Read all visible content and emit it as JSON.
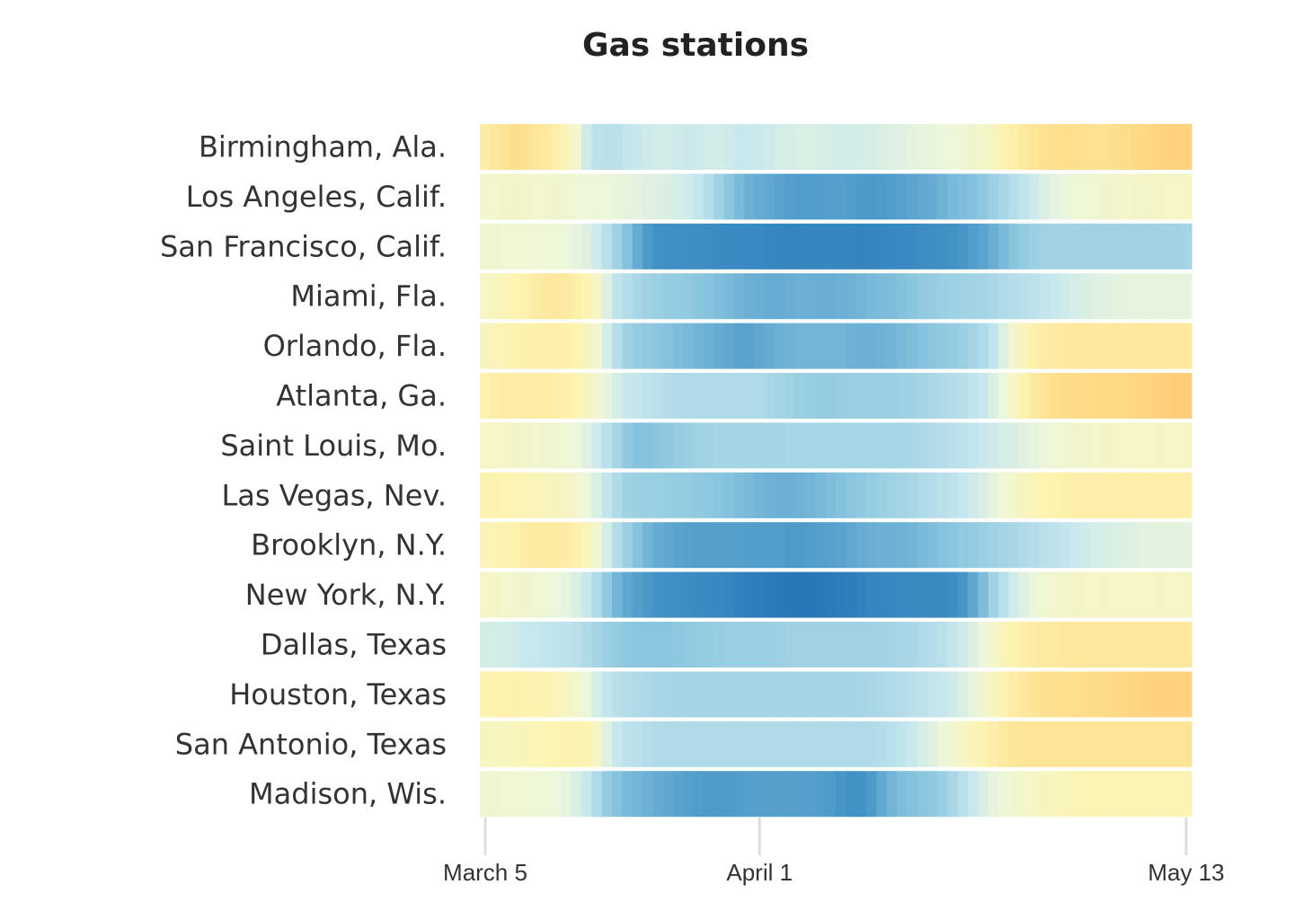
{
  "chart_data": {
    "type": "heatmap",
    "title": "Gas stations",
    "x_start": "March 5",
    "x_end": "May 13",
    "x_ticks": [
      "March 5",
      "April 1",
      "May 13"
    ],
    "days": 70,
    "rows": [
      {
        "name": "Birmingham, Ala.",
        "values": [
          0.22,
          0.26,
          0.3,
          0.35,
          0.32,
          0.28,
          0.25,
          0.2,
          0.12,
          0.05,
          -0.1,
          -0.16,
          -0.18,
          -0.17,
          -0.14,
          -0.12,
          -0.1,
          -0.09,
          -0.09,
          -0.1,
          -0.11,
          -0.1,
          -0.09,
          -0.09,
          -0.1,
          -0.12,
          -0.12,
          -0.11,
          -0.1,
          -0.08,
          -0.07,
          -0.06,
          -0.06,
          -0.07,
          -0.08,
          -0.09,
          -0.09,
          -0.08,
          -0.07,
          -0.06,
          -0.05,
          -0.04,
          -0.03,
          -0.02,
          -0.01,
          0.0,
          0.01,
          0.02,
          0.04,
          0.06,
          0.1,
          0.15,
          0.2,
          0.24,
          0.28,
          0.32,
          0.33,
          0.34,
          0.34,
          0.33,
          0.32,
          0.32,
          0.34,
          0.36,
          0.38,
          0.4,
          0.42,
          0.44,
          0.45,
          0.44
        ]
      },
      {
        "name": "Los Angeles, Calif.",
        "values": [
          0.05,
          0.06,
          0.07,
          0.07,
          0.06,
          0.05,
          0.05,
          0.04,
          0.03,
          0.02,
          0.01,
          0.0,
          0.0,
          -0.01,
          -0.02,
          -0.03,
          -0.04,
          -0.05,
          -0.06,
          -0.08,
          -0.1,
          -0.14,
          -0.2,
          -0.28,
          -0.36,
          -0.42,
          -0.46,
          -0.48,
          -0.5,
          -0.52,
          -0.54,
          -0.55,
          -0.55,
          -0.55,
          -0.54,
          -0.54,
          -0.55,
          -0.56,
          -0.57,
          -0.56,
          -0.55,
          -0.53,
          -0.51,
          -0.5,
          -0.48,
          -0.45,
          -0.42,
          -0.4,
          -0.38,
          -0.35,
          -0.3,
          -0.25,
          -0.2,
          -0.15,
          -0.1,
          -0.06,
          -0.03,
          -0.01,
          0.01,
          0.02,
          0.03,
          0.04,
          0.05,
          0.06,
          0.07,
          0.07,
          0.08,
          0.08,
          0.08,
          0.08
        ]
      },
      {
        "name": "San Francisco, Calif.",
        "values": [
          0.04,
          0.04,
          0.03,
          0.03,
          0.03,
          0.02,
          0.02,
          0.01,
          0.0,
          -0.02,
          -0.05,
          -0.1,
          -0.18,
          -0.28,
          -0.38,
          -0.48,
          -0.56,
          -0.6,
          -0.62,
          -0.63,
          -0.64,
          -0.65,
          -0.66,
          -0.67,
          -0.68,
          -0.69,
          -0.7,
          -0.72,
          -0.74,
          -0.76,
          -0.77,
          -0.76,
          -0.75,
          -0.74,
          -0.74,
          -0.75,
          -0.76,
          -0.77,
          -0.76,
          -0.74,
          -0.72,
          -0.7,
          -0.68,
          -0.66,
          -0.64,
          -0.62,
          -0.6,
          -0.58,
          -0.55,
          -0.52,
          -0.47,
          -0.42,
          -0.37,
          -0.33,
          -0.3,
          -0.28,
          -0.27,
          -0.27,
          -0.27,
          -0.28,
          -0.28,
          -0.28,
          -0.28,
          -0.28,
          -0.28,
          -0.28,
          -0.28,
          -0.27,
          -0.27,
          -0.26
        ]
      },
      {
        "name": "Miami, Fla.",
        "values": [
          0.08,
          0.1,
          0.12,
          0.15,
          0.18,
          0.22,
          0.25,
          0.26,
          0.24,
          0.2,
          0.15,
          0.08,
          -0.05,
          -0.15,
          -0.2,
          -0.24,
          -0.28,
          -0.3,
          -0.32,
          -0.33,
          -0.34,
          -0.36,
          -0.38,
          -0.4,
          -0.42,
          -0.44,
          -0.46,
          -0.47,
          -0.48,
          -0.48,
          -0.47,
          -0.46,
          -0.46,
          -0.47,
          -0.47,
          -0.46,
          -0.45,
          -0.44,
          -0.42,
          -0.41,
          -0.4,
          -0.38,
          -0.36,
          -0.34,
          -0.32,
          -0.3,
          -0.29,
          -0.28,
          -0.27,
          -0.26,
          -0.24,
          -0.22,
          -0.2,
          -0.18,
          -0.16,
          -0.14,
          -0.12,
          -0.1,
          -0.08,
          -0.06,
          -0.05,
          -0.04,
          -0.03,
          -0.02,
          -0.02,
          -0.02,
          -0.02,
          -0.02,
          -0.02,
          -0.02
        ]
      },
      {
        "name": "Orlando, Fla.",
        "values": [
          0.1,
          0.12,
          0.14,
          0.16,
          0.18,
          0.19,
          0.2,
          0.2,
          0.18,
          0.15,
          0.1,
          0.05,
          -0.08,
          -0.2,
          -0.28,
          -0.32,
          -0.34,
          -0.36,
          -0.38,
          -0.4,
          -0.42,
          -0.44,
          -0.46,
          -0.48,
          -0.5,
          -0.52,
          -0.52,
          -0.5,
          -0.48,
          -0.46,
          -0.45,
          -0.44,
          -0.44,
          -0.44,
          -0.44,
          -0.44,
          -0.45,
          -0.46,
          -0.46,
          -0.45,
          -0.44,
          -0.42,
          -0.4,
          -0.38,
          -0.36,
          -0.34,
          -0.32,
          -0.3,
          -0.26,
          -0.22,
          -0.15,
          -0.05,
          0.05,
          0.12,
          0.18,
          0.22,
          0.24,
          0.25,
          0.26,
          0.26,
          0.26,
          0.26,
          0.26,
          0.26,
          0.26,
          0.26,
          0.26,
          0.26,
          0.26,
          0.26
        ]
      },
      {
        "name": "Atlanta, Ga.",
        "values": [
          0.18,
          0.2,
          0.22,
          0.22,
          0.22,
          0.22,
          0.21,
          0.2,
          0.18,
          0.15,
          0.1,
          0.05,
          -0.02,
          -0.08,
          -0.12,
          -0.14,
          -0.16,
          -0.18,
          -0.2,
          -0.22,
          -0.22,
          -0.22,
          -0.22,
          -0.22,
          -0.22,
          -0.22,
          -0.22,
          -0.22,
          -0.24,
          -0.26,
          -0.28,
          -0.3,
          -0.31,
          -0.32,
          -0.32,
          -0.31,
          -0.3,
          -0.3,
          -0.3,
          -0.3,
          -0.3,
          -0.29,
          -0.28,
          -0.26,
          -0.24,
          -0.22,
          -0.2,
          -0.18,
          -0.15,
          -0.12,
          -0.06,
          0.0,
          0.08,
          0.16,
          0.24,
          0.3,
          0.34,
          0.36,
          0.37,
          0.38,
          0.38,
          0.38,
          0.38,
          0.39,
          0.4,
          0.42,
          0.44,
          0.46,
          0.48,
          0.48
        ]
      },
      {
        "name": "Saint Louis, Mo.",
        "values": [
          0.08,
          0.08,
          0.08,
          0.07,
          0.06,
          0.05,
          0.04,
          0.03,
          0.02,
          0.0,
          -0.04,
          -0.1,
          -0.18,
          -0.26,
          -0.34,
          -0.38,
          -0.38,
          -0.36,
          -0.34,
          -0.32,
          -0.3,
          -0.28,
          -0.27,
          -0.26,
          -0.26,
          -0.26,
          -0.26,
          -0.26,
          -0.26,
          -0.26,
          -0.25,
          -0.25,
          -0.25,
          -0.25,
          -0.25,
          -0.25,
          -0.25,
          -0.25,
          -0.25,
          -0.25,
          -0.25,
          -0.25,
          -0.24,
          -0.23,
          -0.22,
          -0.2,
          -0.18,
          -0.16,
          -0.14,
          -0.12,
          -0.1,
          -0.08,
          -0.06,
          -0.04,
          -0.02,
          0.0,
          0.02,
          0.03,
          0.04,
          0.05,
          0.06,
          0.07,
          0.08,
          0.08,
          0.08,
          0.08,
          0.08,
          0.08,
          0.08,
          0.08
        ]
      },
      {
        "name": "Las Vegas, Nev.",
        "values": [
          0.16,
          0.16,
          0.15,
          0.14,
          0.13,
          0.12,
          0.11,
          0.1,
          0.08,
          0.05,
          0.0,
          -0.06,
          -0.14,
          -0.22,
          -0.28,
          -0.3,
          -0.3,
          -0.3,
          -0.31,
          -0.32,
          -0.33,
          -0.34,
          -0.35,
          -0.36,
          -0.38,
          -0.4,
          -0.42,
          -0.44,
          -0.45,
          -0.46,
          -0.46,
          -0.45,
          -0.44,
          -0.42,
          -0.4,
          -0.38,
          -0.36,
          -0.34,
          -0.32,
          -0.3,
          -0.28,
          -0.26,
          -0.24,
          -0.22,
          -0.2,
          -0.18,
          -0.16,
          -0.13,
          -0.1,
          -0.06,
          -0.02,
          0.02,
          0.06,
          0.1,
          0.13,
          0.15,
          0.17,
          0.19,
          0.2,
          0.2,
          0.2,
          0.2,
          0.2,
          0.2,
          0.2,
          0.2,
          0.2,
          0.2,
          0.2,
          0.2
        ]
      },
      {
        "name": "Brooklyn, N.Y.",
        "values": [
          0.12,
          0.14,
          0.16,
          0.18,
          0.22,
          0.24,
          0.25,
          0.24,
          0.22,
          0.18,
          0.12,
          0.04,
          -0.08,
          -0.2,
          -0.3,
          -0.38,
          -0.44,
          -0.48,
          -0.5,
          -0.52,
          -0.53,
          -0.54,
          -0.54,
          -0.54,
          -0.54,
          -0.54,
          -0.55,
          -0.55,
          -0.55,
          -0.55,
          -0.56,
          -0.56,
          -0.55,
          -0.54,
          -0.53,
          -0.52,
          -0.5,
          -0.48,
          -0.47,
          -0.46,
          -0.46,
          -0.45,
          -0.44,
          -0.42,
          -0.4,
          -0.38,
          -0.36,
          -0.34,
          -0.32,
          -0.3,
          -0.28,
          -0.26,
          -0.24,
          -0.22,
          -0.2,
          -0.18,
          -0.16,
          -0.14,
          -0.12,
          -0.1,
          -0.08,
          -0.07,
          -0.06,
          -0.05,
          -0.04,
          -0.03,
          -0.03,
          -0.03,
          -0.03,
          -0.03
        ]
      },
      {
        "name": "New York, N.Y.",
        "values": [
          0.08,
          0.07,
          0.06,
          0.05,
          0.04,
          0.03,
          0.02,
          0.0,
          -0.02,
          -0.06,
          -0.12,
          -0.22,
          -0.34,
          -0.44,
          -0.5,
          -0.54,
          -0.57,
          -0.6,
          -0.62,
          -0.64,
          -0.66,
          -0.68,
          -0.7,
          -0.72,
          -0.76,
          -0.8,
          -0.84,
          -0.86,
          -0.88,
          -0.9,
          -0.92,
          -0.93,
          -0.92,
          -0.9,
          -0.88,
          -0.86,
          -0.84,
          -0.8,
          -0.76,
          -0.74,
          -0.72,
          -0.7,
          -0.7,
          -0.7,
          -0.7,
          -0.68,
          -0.64,
          -0.58,
          -0.5,
          -0.4,
          -0.28,
          -0.18,
          -0.1,
          -0.04,
          0.0,
          0.03,
          0.05,
          0.06,
          0.07,
          0.08,
          0.08,
          0.08,
          0.08,
          0.08,
          0.08,
          0.08,
          0.08,
          0.08,
          0.08,
          0.08
        ]
      },
      {
        "name": "Dallas, Texas",
        "values": [
          -0.08,
          -0.08,
          -0.09,
          -0.1,
          -0.12,
          -0.13,
          -0.14,
          -0.15,
          -0.16,
          -0.18,
          -0.22,
          -0.26,
          -0.3,
          -0.33,
          -0.35,
          -0.36,
          -0.36,
          -0.36,
          -0.36,
          -0.35,
          -0.34,
          -0.33,
          -0.32,
          -0.31,
          -0.3,
          -0.3,
          -0.3,
          -0.3,
          -0.3,
          -0.29,
          -0.28,
          -0.28,
          -0.28,
          -0.28,
          -0.28,
          -0.28,
          -0.28,
          -0.28,
          -0.28,
          -0.27,
          -0.26,
          -0.25,
          -0.24,
          -0.22,
          -0.2,
          -0.18,
          -0.14,
          -0.1,
          -0.05,
          0.0,
          0.06,
          0.12,
          0.16,
          0.2,
          0.22,
          0.24,
          0.25,
          0.26,
          0.26,
          0.26,
          0.26,
          0.26,
          0.26,
          0.26,
          0.26,
          0.26,
          0.26,
          0.26,
          0.26,
          0.26
        ]
      },
      {
        "name": "Houston, Texas",
        "values": [
          0.16,
          0.17,
          0.18,
          0.18,
          0.17,
          0.16,
          0.14,
          0.12,
          0.1,
          0.06,
          0.0,
          -0.08,
          -0.14,
          -0.18,
          -0.2,
          -0.22,
          -0.23,
          -0.24,
          -0.25,
          -0.26,
          -0.26,
          -0.26,
          -0.26,
          -0.26,
          -0.26,
          -0.26,
          -0.26,
          -0.26,
          -0.26,
          -0.26,
          -0.26,
          -0.26,
          -0.26,
          -0.26,
          -0.26,
          -0.26,
          -0.26,
          -0.25,
          -0.24,
          -0.23,
          -0.22,
          -0.2,
          -0.18,
          -0.16,
          -0.14,
          -0.12,
          -0.1,
          -0.06,
          -0.02,
          0.04,
          0.1,
          0.16,
          0.22,
          0.26,
          0.3,
          0.32,
          0.33,
          0.34,
          0.34,
          0.35,
          0.36,
          0.37,
          0.38,
          0.4,
          0.42,
          0.43,
          0.44,
          0.44,
          0.44,
          0.44
        ]
      },
      {
        "name": "San Antonio, Texas",
        "values": [
          0.1,
          0.1,
          0.1,
          0.11,
          0.12,
          0.13,
          0.14,
          0.15,
          0.16,
          0.16,
          0.14,
          0.08,
          -0.04,
          -0.12,
          -0.16,
          -0.18,
          -0.2,
          -0.21,
          -0.22,
          -0.22,
          -0.22,
          -0.22,
          -0.22,
          -0.22,
          -0.22,
          -0.22,
          -0.22,
          -0.22,
          -0.22,
          -0.22,
          -0.22,
          -0.22,
          -0.22,
          -0.22,
          -0.22,
          -0.22,
          -0.22,
          -0.22,
          -0.21,
          -0.2,
          -0.18,
          -0.15,
          -0.12,
          -0.08,
          -0.04,
          0.0,
          0.04,
          0.08,
          0.12,
          0.16,
          0.2,
          0.24,
          0.27,
          0.29,
          0.3,
          0.3,
          0.3,
          0.3,
          0.3,
          0.3,
          0.3,
          0.3,
          0.3,
          0.3,
          0.3,
          0.3,
          0.3,
          0.3,
          0.3,
          0.3
        ]
      },
      {
        "name": "Madison, Wis.",
        "values": [
          0.04,
          0.04,
          0.03,
          0.03,
          0.02,
          0.02,
          0.01,
          0.0,
          -0.02,
          -0.06,
          -0.12,
          -0.22,
          -0.32,
          -0.38,
          -0.42,
          -0.44,
          -0.46,
          -0.48,
          -0.5,
          -0.52,
          -0.54,
          -0.55,
          -0.56,
          -0.56,
          -0.56,
          -0.55,
          -0.54,
          -0.54,
          -0.54,
          -0.54,
          -0.54,
          -0.54,
          -0.54,
          -0.55,
          -0.56,
          -0.58,
          -0.6,
          -0.6,
          -0.56,
          -0.5,
          -0.44,
          -0.4,
          -0.38,
          -0.36,
          -0.34,
          -0.3,
          -0.24,
          -0.18,
          -0.12,
          -0.06,
          -0.02,
          0.01,
          0.04,
          0.06,
          0.08,
          0.1,
          0.11,
          0.12,
          0.13,
          0.14,
          0.14,
          0.14,
          0.14,
          0.14,
          0.14,
          0.14,
          0.14,
          0.14,
          0.14,
          0.14
        ]
      }
    ]
  }
}
